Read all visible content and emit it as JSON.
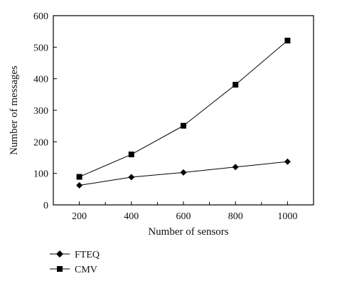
{
  "chart_data": {
    "type": "line",
    "title": "",
    "xlabel": "Number of sensors",
    "ylabel": "Number of messages",
    "x": [
      200,
      400,
      600,
      800,
      1000
    ],
    "xticks": [
      200,
      400,
      600,
      800,
      1000
    ],
    "xlim": [
      100,
      1100
    ],
    "yticks": [
      0,
      100,
      200,
      300,
      400,
      500,
      600
    ],
    "ylim": [
      0,
      600
    ],
    "grid": false,
    "legend_position": "bottom-left",
    "series": [
      {
        "name": "FTEQ",
        "marker": "diamond",
        "values": [
          62,
          88,
          103,
          120,
          137
        ]
      },
      {
        "name": "CMV",
        "marker": "square",
        "values": [
          89,
          160,
          251,
          381,
          521
        ]
      }
    ]
  },
  "colors": {
    "line": "#000000",
    "background": "#ffffff"
  }
}
